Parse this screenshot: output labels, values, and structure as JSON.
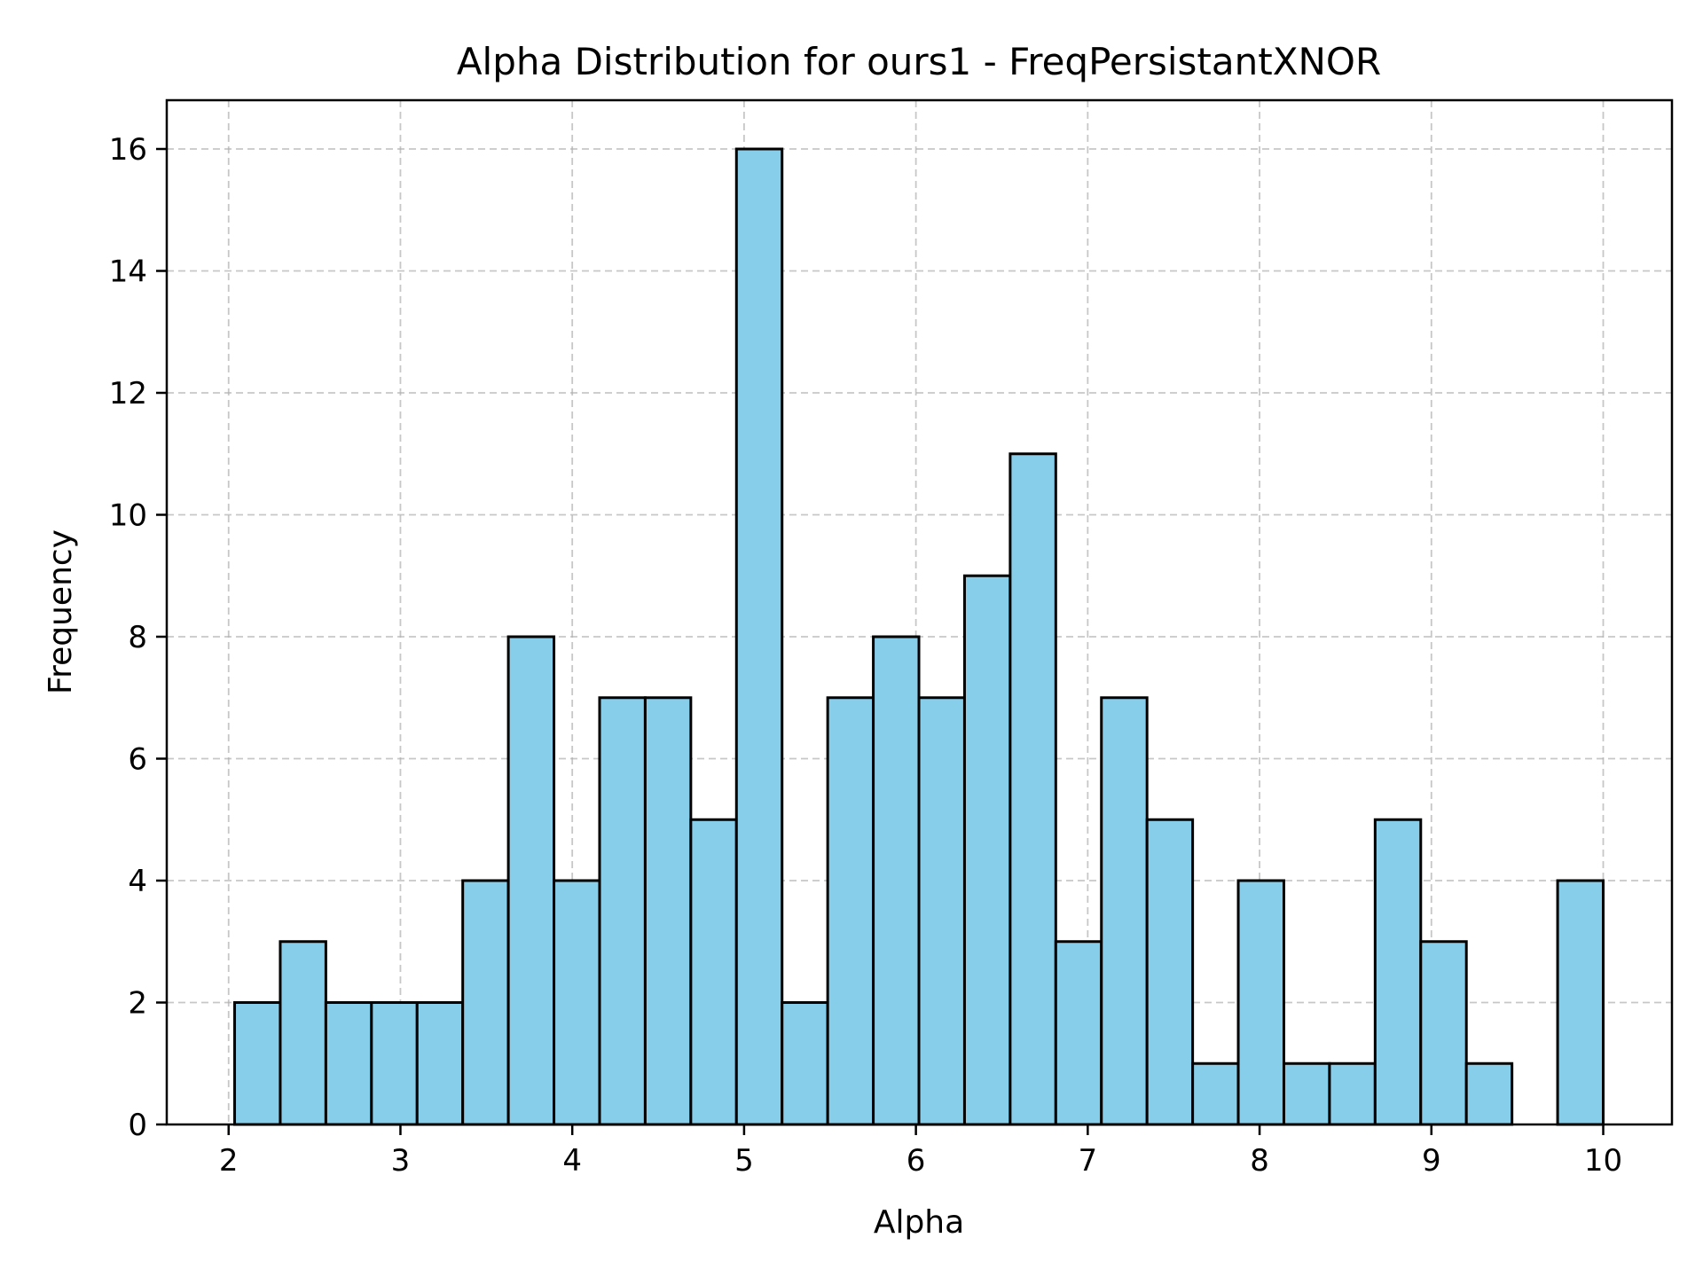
{
  "chart_data": {
    "type": "bar",
    "title": "Alpha Distribution for ours1 - FreqPersistantXNOR",
    "xlabel": "Alpha",
    "ylabel": "Frequency",
    "xlim": [
      1.64,
      10.4
    ],
    "ylim": [
      0,
      16.8
    ],
    "x_ticks": [
      2,
      3,
      4,
      5,
      6,
      7,
      8,
      9,
      10
    ],
    "x_tick_labels": [
      "2",
      "3",
      "4",
      "5",
      "6",
      "7",
      "8",
      "9",
      "10"
    ],
    "y_ticks": [
      0,
      2,
      4,
      6,
      8,
      10,
      12,
      14,
      16
    ],
    "y_tick_labels": [
      "0",
      "2",
      "4",
      "6",
      "8",
      "10",
      "12",
      "14",
      "16"
    ],
    "bins": {
      "start": 2.035,
      "width": 0.2655,
      "count": 30
    },
    "values": [
      2,
      3,
      2,
      2,
      2,
      4,
      8,
      4,
      7,
      7,
      5,
      16,
      2,
      7,
      8,
      7,
      9,
      11,
      3,
      7,
      5,
      1,
      4,
      1,
      1,
      5,
      3,
      1,
      0,
      4
    ],
    "grid": true,
    "colors": {
      "bar_fill": "#87ceeb",
      "bar_edge": "#000000",
      "grid": "#b0b0b0"
    }
  }
}
